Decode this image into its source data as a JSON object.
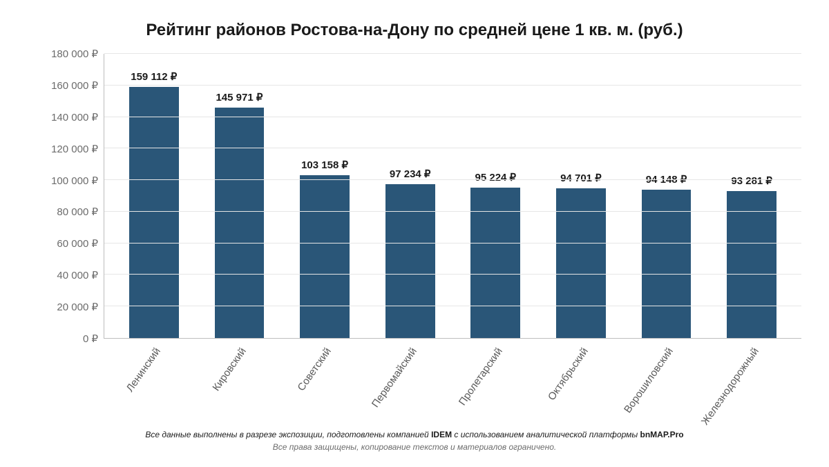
{
  "title": "Рейтинг районов Ростова-на-Дону по средней цене 1 кв. м. (руб.)",
  "title_fontsize": 24,
  "chart": {
    "type": "bar",
    "bar_color": "#2a5678",
    "background_color": "#ffffff",
    "grid_color": "#e6e6e6",
    "axis_color": "#bdbdbd",
    "tick_label_color": "#6b6b6b",
    "datalabel_color": "#1a1a1a",
    "datalabel_fontsize": 15,
    "datalabel_fontweight": 700,
    "tick_fontsize": 15,
    "x_label_fontsize": 15,
    "x_label_rotation_deg": -55,
    "bar_width_ratio": 0.58,
    "y": {
      "min": 0,
      "max": 180000,
      "step": 20000,
      "ticks": [
        {
          "v": 0,
          "label": "0 ₽"
        },
        {
          "v": 20000,
          "label": "20 000 ₽"
        },
        {
          "v": 40000,
          "label": "40 000 ₽"
        },
        {
          "v": 60000,
          "label": "60 000 ₽"
        },
        {
          "v": 80000,
          "label": "80 000 ₽"
        },
        {
          "v": 100000,
          "label": "100 000 ₽"
        },
        {
          "v": 120000,
          "label": "120 000 ₽"
        },
        {
          "v": 140000,
          "label": "140 000 ₽"
        },
        {
          "v": 160000,
          "label": "160 000 ₽"
        },
        {
          "v": 180000,
          "label": "180 000 ₽"
        }
      ]
    },
    "data": [
      {
        "category": "Ленинский",
        "value": 159112,
        "label": "159 112 ₽"
      },
      {
        "category": "Кировский",
        "value": 145971,
        "label": "145 971 ₽"
      },
      {
        "category": "Советский",
        "value": 103158,
        "label": "103 158 ₽"
      },
      {
        "category": "Первомайский",
        "value": 97234,
        "label": "97 234 ₽"
      },
      {
        "category": "Пролетарский",
        "value": 95224,
        "label": "95 224 ₽"
      },
      {
        "category": "Октябрьский",
        "value": 94701,
        "label": "94 701 ₽"
      },
      {
        "category": "Ворошиловский",
        "value": 94148,
        "label": "94 148 ₽"
      },
      {
        "category": "Железнодорожный",
        "value": 93281,
        "label": "93 281 ₽"
      }
    ]
  },
  "footer": {
    "line1_pre": "Все данные выполнены в разрезе экспозиции, подготовлены компанией ",
    "line1_b1": "IDEM",
    "line1_mid": " с использованием аналитической платформы ",
    "line1_b2": "bnMAP.Pro",
    "line2": "Все права защищены, копирование текстов и материалов ограничено."
  }
}
